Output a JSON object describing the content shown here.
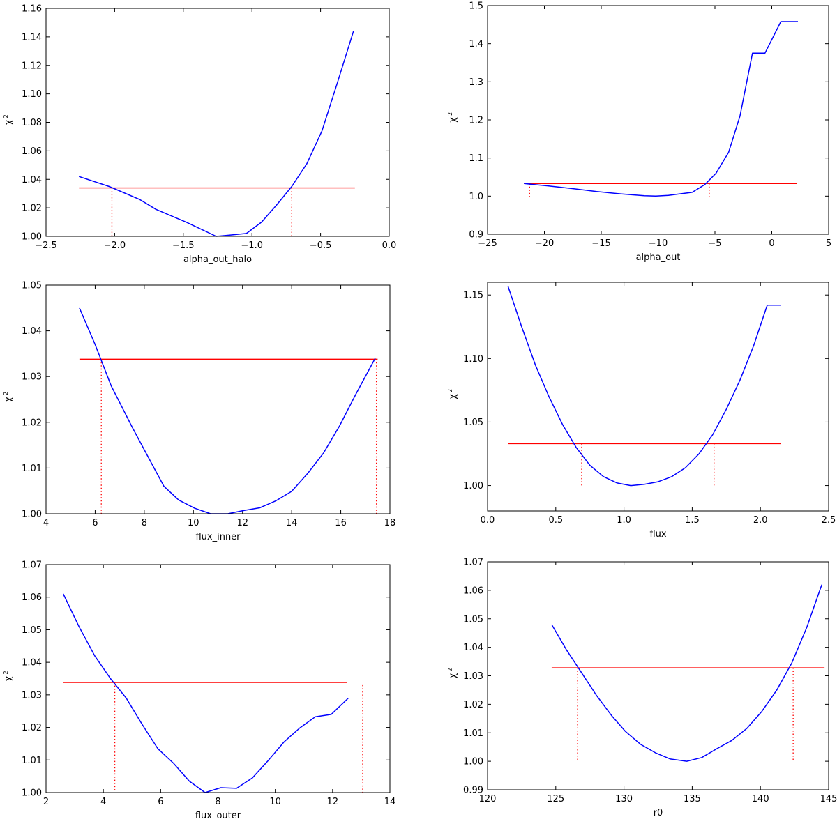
{
  "figure": {
    "title": "",
    "colors": {
      "curve": "#0000ff",
      "threshold": "#ff0000",
      "axes": "#000000",
      "background": "#ffffff"
    }
  },
  "chart_data": [
    {
      "type": "line",
      "xlabel": "alpha_out_halo",
      "ylabel": "χ",
      "ylabel_sup": "2",
      "xlim": [
        -2.5,
        0.0
      ],
      "ylim": [
        1.0,
        1.16
      ],
      "xticks": [
        -2.5,
        -2.0,
        -1.5,
        -1.0,
        -0.5,
        0.0
      ],
      "xtick_labels": [
        "−2.5",
        "−2.0",
        "−1.5",
        "−1.0",
        "−0.5",
        "0.0"
      ],
      "yticks": [
        1.0,
        1.02,
        1.04,
        1.06,
        1.08,
        1.1,
        1.12,
        1.14,
        1.16
      ],
      "ytick_labels": [
        "1.00",
        "1.02",
        "1.04",
        "1.06",
        "1.08",
        "1.10",
        "1.12",
        "1.14",
        "1.16"
      ],
      "series": [
        {
          "name": "chi2",
          "x": [
            -2.26,
            -2.04,
            -1.82,
            -1.7,
            -1.48,
            -1.26,
            -1.15,
            -1.04,
            -0.93,
            -0.82,
            -0.71,
            -0.6,
            -0.49,
            -0.38,
            -0.26
          ],
          "y": [
            1.042,
            1.035,
            1.026,
            1.019,
            1.01,
            1.0,
            1.001,
            1.002,
            1.01,
            1.022,
            1.035,
            1.051,
            1.074,
            1.107,
            1.144
          ]
        }
      ],
      "threshold": {
        "y": 1.034,
        "x_range": [
          -2.26,
          -0.25
        ]
      },
      "bounds": [
        {
          "x": -2.02,
          "y_top": 1.034,
          "y_bottom": 1.0
        },
        {
          "x": -0.71,
          "y_top": 1.034,
          "y_bottom": 1.0
        }
      ]
    },
    {
      "type": "line",
      "xlabel": "alpha_out",
      "ylabel": "χ",
      "ylabel_sup": "2",
      "xlim": [
        -25,
        5
      ],
      "ylim": [
        0.9,
        1.5
      ],
      "xticks": [
        -25,
        -20,
        -15,
        -10,
        -5,
        0,
        5
      ],
      "xtick_labels": [
        "−25",
        "−20",
        "−15",
        "−10",
        "−5",
        "0",
        "5"
      ],
      "yticks": [
        0.9,
        1.0,
        1.1,
        1.2,
        1.3,
        1.4,
        1.5
      ],
      "ytick_labels": [
        "0.9",
        "1.0",
        "1.1",
        "1.2",
        "1.3",
        "1.4",
        "1.5"
      ],
      "series": [
        {
          "name": "chi2",
          "x": [
            -21.8,
            -19.7,
            -17.6,
            -15.4,
            -13.3,
            -11.2,
            -10.2,
            -9.1,
            -7.0,
            -5.9,
            -4.9,
            -3.8,
            -2.8,
            -1.7,
            -0.6,
            0.8,
            2.3
          ],
          "y": [
            1.033,
            1.027,
            1.02,
            1.012,
            1.006,
            1.001,
            1.0,
            1.002,
            1.01,
            1.03,
            1.06,
            1.115,
            1.21,
            1.375,
            1.375,
            1.458,
            1.458
          ]
        }
      ],
      "threshold": {
        "y": 1.033,
        "x_range": [
          -21.8,
          2.2
        ]
      },
      "bounds": [
        {
          "x": -21.3,
          "y_top": 1.033,
          "y_bottom": 0.998
        },
        {
          "x": -5.5,
          "y_top": 1.033,
          "y_bottom": 0.998
        }
      ]
    },
    {
      "type": "line",
      "xlabel": "flux_inner",
      "ylabel": "χ",
      "ylabel_sup": "2",
      "xlim": [
        4,
        18
      ],
      "ylim": [
        1.0,
        1.05
      ],
      "xticks": [
        4,
        6,
        8,
        10,
        12,
        14,
        16,
        18
      ],
      "xtick_labels": [
        "4",
        "6",
        "8",
        "10",
        "12",
        "14",
        "16",
        "18"
      ],
      "yticks": [
        1.0,
        1.01,
        1.02,
        1.03,
        1.04,
        1.05
      ],
      "ytick_labels": [
        "1.00",
        "1.01",
        "1.02",
        "1.03",
        "1.04",
        "1.05"
      ],
      "series": [
        {
          "name": "chi2",
          "x": [
            5.36,
            6.0,
            6.65,
            7.5,
            8.15,
            8.8,
            9.4,
            10.05,
            10.7,
            11.4,
            12.05,
            12.7,
            13.35,
            14.0,
            14.65,
            15.3,
            15.95,
            16.6,
            17.4
          ],
          "y": [
            1.045,
            1.037,
            1.028,
            1.019,
            1.0125,
            1.006,
            1.003,
            1.0012,
            1.0,
            1.0,
            1.0007,
            1.0013,
            1.0028,
            1.0049,
            1.0088,
            1.0133,
            1.0192,
            1.026,
            1.034
          ]
        }
      ],
      "threshold": {
        "y": 1.0338,
        "x_range": [
          5.36,
          17.5
        ]
      },
      "bounds": [
        {
          "x": 6.25,
          "y_top": 1.0338,
          "y_bottom": 1.0
        },
        {
          "x": 17.45,
          "y_top": 1.0338,
          "y_bottom": 1.0
        }
      ]
    },
    {
      "type": "line",
      "xlabel": "flux",
      "ylabel": "χ",
      "ylabel_sup": "2",
      "xlim": [
        0.0,
        2.5
      ],
      "ylim": [
        0.98,
        1.16
      ],
      "xticks": [
        0.0,
        0.5,
        1.0,
        1.5,
        2.0,
        2.5
      ],
      "xtick_labels": [
        "0.0",
        "0.5",
        "1.0",
        "1.5",
        "2.0",
        "2.5"
      ],
      "yticks": [
        1.0,
        1.05,
        1.1,
        1.15
      ],
      "ytick_labels": [
        "1.00",
        "1.05",
        "1.10",
        "1.15"
      ],
      "series": [
        {
          "name": "chi2",
          "x": [
            0.15,
            0.25,
            0.35,
            0.45,
            0.55,
            0.65,
            0.75,
            0.85,
            0.95,
            1.05,
            1.15,
            1.25,
            1.35,
            1.45,
            1.55,
            1.65,
            1.75,
            1.85,
            1.95,
            2.05,
            2.15
          ],
          "y": [
            1.157,
            1.125,
            1.095,
            1.07,
            1.048,
            1.03,
            1.016,
            1.007,
            1.002,
            1.0,
            1.001,
            1.003,
            1.007,
            1.014,
            1.025,
            1.04,
            1.06,
            1.083,
            1.11,
            1.142,
            1.142
          ]
        }
      ],
      "threshold": {
        "y": 1.033,
        "x_range": [
          0.15,
          2.15
        ]
      },
      "bounds": [
        {
          "x": 0.69,
          "y_top": 1.033,
          "y_bottom": 1.0
        },
        {
          "x": 1.66,
          "y_top": 1.033,
          "y_bottom": 1.0
        }
      ]
    },
    {
      "type": "line",
      "xlabel": "flux_outer",
      "ylabel": "χ",
      "ylabel_sup": "2",
      "xlim": [
        2,
        14
      ],
      "ylim": [
        1.0,
        1.07
      ],
      "xticks": [
        2,
        4,
        6,
        8,
        10,
        12,
        14
      ],
      "xtick_labels": [
        "2",
        "4",
        "6",
        "8",
        "10",
        "12",
        "14"
      ],
      "yticks": [
        1.0,
        1.01,
        1.02,
        1.03,
        1.04,
        1.05,
        1.06,
        1.07
      ],
      "ytick_labels": [
        "1.00",
        "1.01",
        "1.02",
        "1.03",
        "1.04",
        "1.05",
        "1.06",
        "1.07"
      ],
      "series": [
        {
          "name": "chi2",
          "x": [
            2.6,
            3.15,
            3.7,
            4.25,
            4.8,
            5.35,
            5.9,
            6.45,
            7.0,
            7.55,
            8.1,
            8.65,
            9.2,
            9.75,
            10.3,
            10.85,
            11.4,
            11.95,
            12.55
          ],
          "y": [
            1.061,
            1.051,
            1.042,
            1.035,
            1.029,
            1.021,
            1.0135,
            1.009,
            1.0035,
            1.0,
            1.0015,
            1.0013,
            1.0045,
            1.0098,
            1.0155,
            1.0198,
            1.0233,
            1.024,
            1.029
          ]
        }
      ],
      "threshold": {
        "y": 1.0338,
        "x_range": [
          2.6,
          12.5
        ]
      },
      "bounds": [
        {
          "x": 4.4,
          "y_top": 1.0338,
          "y_bottom": 1.0
        },
        {
          "x": 13.05,
          "y_top": 1.033,
          "y_bottom": 1.0
        }
      ]
    },
    {
      "type": "line",
      "xlabel": "r0",
      "ylabel": "χ",
      "ylabel_sup": "2",
      "xlim": [
        120,
        145
      ],
      "ylim": [
        0.99,
        1.07
      ],
      "xticks": [
        120,
        125,
        130,
        135,
        140,
        145
      ],
      "xtick_labels": [
        "120",
        "125",
        "130",
        "135",
        "140",
        "145"
      ],
      "yticks": [
        0.99,
        1.0,
        1.01,
        1.02,
        1.03,
        1.04,
        1.05,
        1.06,
        1.07
      ],
      "ytick_labels": [
        "0.99",
        "1.00",
        "1.01",
        "1.02",
        "1.03",
        "1.04",
        "1.05",
        "1.06",
        "1.07"
      ],
      "series": [
        {
          "name": "chi2",
          "x": [
            124.7,
            125.8,
            126.9,
            128.0,
            129.1,
            130.1,
            131.2,
            132.3,
            133.4,
            134.6,
            135.7,
            136.8,
            137.9,
            139.0,
            140.1,
            141.2,
            142.3,
            143.4,
            144.5
          ],
          "y": [
            1.048,
            1.039,
            1.031,
            1.023,
            1.016,
            1.0105,
            1.006,
            1.003,
            1.0008,
            1.0,
            1.0013,
            1.0044,
            1.0073,
            1.0115,
            1.0175,
            1.025,
            1.0345,
            1.047,
            1.062
          ]
        }
      ],
      "threshold": {
        "y": 1.0328,
        "x_range": [
          124.7,
          144.7
        ]
      },
      "bounds": [
        {
          "x": 126.6,
          "y_top": 1.0328,
          "y_bottom": 1.0
        },
        {
          "x": 142.4,
          "y_top": 1.0328,
          "y_bottom": 1.0
        }
      ]
    }
  ]
}
